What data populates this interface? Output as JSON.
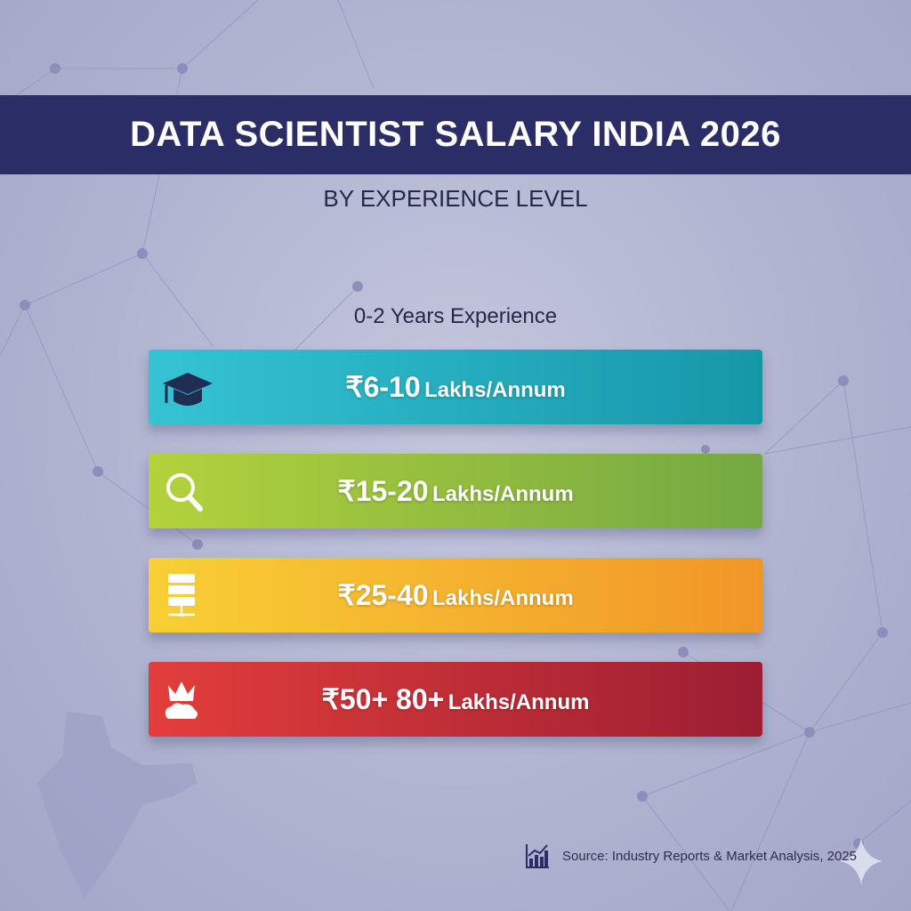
{
  "title": "DATA SCIENTIST SALARY INDIA 2026",
  "subtitle": "BY EXPERIENCE LEVEL",
  "experience_label": "0-2 Years Experience",
  "tiers": [
    {
      "amount": "₹6-10",
      "unit": "Lakhs/Annum",
      "icon": "graduation-cap-icon",
      "color": "#2ab3c4"
    },
    {
      "amount": "₹15-20",
      "unit": "Lakhs/Annum",
      "icon": "magnifier-icon",
      "color": "#94c13e"
    },
    {
      "amount": "₹25-40",
      "unit": "Lakhs/Annum",
      "icon": "server-icon",
      "color": "#f5b22e"
    },
    {
      "amount": "₹50+ 80+",
      "unit": "Lakhs/Annum",
      "icon": "crown-icon",
      "color": "#c42e38"
    }
  ],
  "source": {
    "icon": "bar-chart-icon",
    "text": "Source: Industry Reports & Market Analysis, 2025"
  },
  "colors": {
    "banner": "#2b2e66",
    "text": "#26284a"
  }
}
